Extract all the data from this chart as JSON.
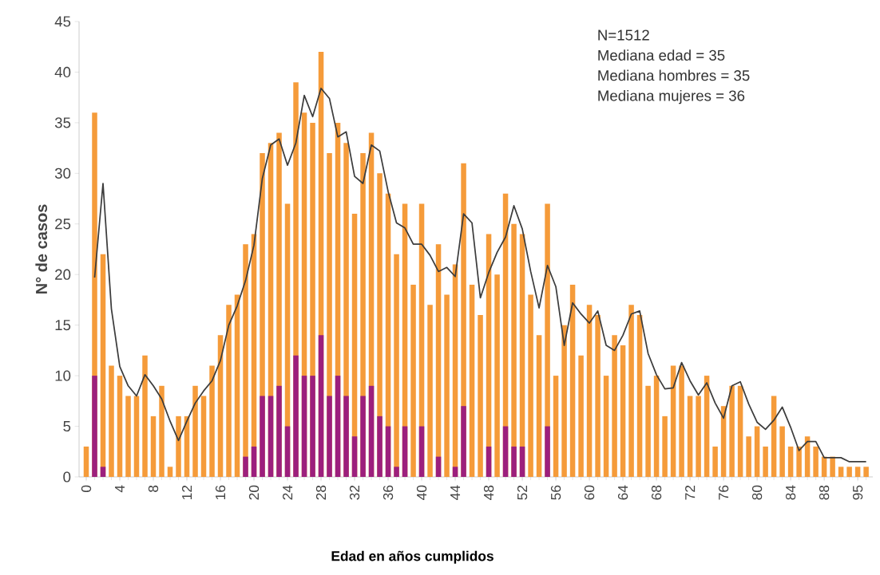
{
  "chart_data": {
    "type": "bar",
    "xlabel": "Edad en años cumplidos",
    "ylabel": "N° de casos",
    "annotations": [
      "N=1512",
      "Mediana edad = 35",
      "Mediana hombres = 35",
      "Mediana mujeres = 36"
    ],
    "categories": [
      "0",
      null,
      null,
      null,
      "4",
      null,
      null,
      null,
      "8",
      null,
      null,
      null,
      "12",
      null,
      null,
      null,
      "16",
      null,
      null,
      null,
      "20",
      null,
      null,
      null,
      "24",
      null,
      null,
      null,
      "28",
      null,
      null,
      null,
      "32",
      null,
      null,
      null,
      "36",
      null,
      null,
      null,
      "40",
      null,
      null,
      null,
      "44",
      null,
      null,
      null,
      "48",
      null,
      null,
      null,
      "52",
      null,
      null,
      null,
      "56",
      null,
      null,
      null,
      "60",
      null,
      null,
      null,
      "64",
      null,
      null,
      null,
      "68",
      null,
      null,
      null,
      "72",
      null,
      null,
      null,
      "76",
      null,
      null,
      null,
      "80",
      null,
      null,
      null,
      "84",
      null,
      null,
      null,
      "88",
      null,
      null,
      null,
      "95",
      null
    ],
    "ylim": [
      0,
      45
    ],
    "yticks": [
      0,
      5,
      10,
      15,
      20,
      25,
      30,
      35,
      40,
      45
    ],
    "series": [
      {
        "color": "#f59b3a",
        "values": [
          3,
          36,
          22,
          11,
          10,
          8,
          8,
          12,
          6,
          9,
          1,
          6,
          6,
          9,
          8,
          11,
          14,
          17,
          18,
          23,
          24,
          32,
          33,
          34,
          27,
          39,
          36,
          35,
          42,
          32,
          35,
          33,
          26,
          32,
          34,
          30,
          28,
          22,
          27,
          19,
          27,
          17,
          23,
          18,
          21,
          31,
          19,
          16,
          24,
          20,
          28,
          25,
          24,
          18,
          14,
          27,
          10,
          15,
          19,
          12,
          17,
          16,
          10,
          14,
          13,
          17,
          16,
          9,
          10,
          6,
          11,
          11,
          8,
          8,
          10,
          3,
          7,
          9,
          9,
          4,
          5,
          3,
          8,
          5,
          3,
          3,
          4,
          3,
          2,
          2,
          1,
          1,
          1,
          1
        ]
      },
      {
        "color": "#9c1f7d",
        "values": [
          null,
          10,
          1,
          null,
          null,
          null,
          null,
          null,
          null,
          null,
          null,
          null,
          null,
          null,
          null,
          null,
          null,
          null,
          null,
          2,
          3,
          8,
          8,
          9,
          5,
          12,
          10,
          10,
          14,
          8,
          10,
          8,
          4,
          8,
          9,
          6,
          5,
          1,
          5,
          null,
          5,
          null,
          2,
          null,
          1,
          7,
          null,
          null,
          3,
          null,
          5,
          3,
          3,
          null,
          null,
          5,
          null,
          null,
          null,
          null,
          null,
          null,
          null,
          null,
          null,
          null,
          null,
          null,
          null,
          null,
          null,
          null,
          null,
          null,
          null,
          null,
          null,
          null,
          null,
          null,
          null,
          null,
          null,
          null,
          null,
          null,
          null,
          null,
          null,
          null,
          null,
          null,
          null,
          null
        ]
      },
      {
        "type": "line",
        "color": "#3c3c3c",
        "values": [
          null,
          19.7,
          29,
          16.6,
          10.9,
          9,
          8,
          10.1,
          9,
          7.7,
          5.5,
          3.6,
          5.5,
          7.3,
          8.5,
          9.5,
          11.5,
          15,
          16.9,
          19.4,
          22.9,
          29.5,
          32.8,
          33.4,
          30.8,
          33,
          37.7,
          35.6,
          38.4,
          37.4,
          33.6,
          34.1,
          29.7,
          29,
          32.8,
          32.2,
          28.2,
          25.1,
          24.6,
          23,
          23,
          21.9,
          20.3,
          20.7,
          19.8,
          26,
          25.1,
          17.7,
          20.2,
          22.2,
          23.7,
          26.8,
          24.5,
          20.3,
          16.7,
          20.9,
          18.8,
          13,
          17.2,
          16.1,
          15.2,
          16.4,
          13,
          12.5,
          14,
          16.1,
          16.4,
          12.2,
          10.1,
          8.7,
          8.8,
          11.3,
          9.5,
          8.1,
          9.3,
          7.3,
          5.8,
          9,
          9.4,
          7.2,
          5.4,
          4.7,
          5.6,
          6.9,
          4.9,
          2.6,
          3.5,
          3.5,
          1.9,
          1.9,
          1.9,
          1.5,
          1.5,
          1.5
        ]
      }
    ]
  }
}
